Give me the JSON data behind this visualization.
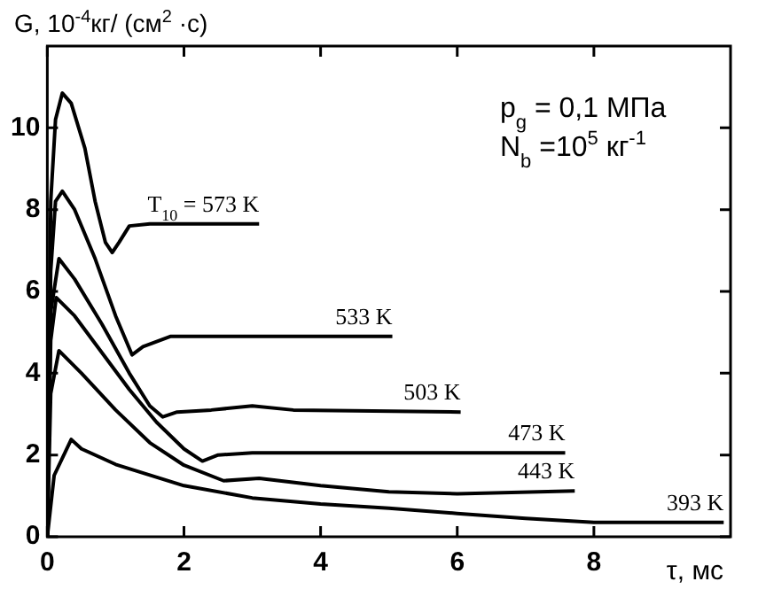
{
  "chart_data": {
    "type": "line",
    "ylabel": "G, 10$^{-4}$кг/ (см$^{2}$ ·с)",
    "xlabel": "τ, мс",
    "annotations": [
      "p$_{g}$ = 0,1 МПа",
      "N$_{b}$ =10$^{5}$ кг$^{-1}$"
    ],
    "xlim": [
      0,
      10
    ],
    "xticks": [
      0,
      2,
      4,
      6,
      8
    ],
    "ylim": [
      0,
      12
    ],
    "yticks": [
      0,
      2,
      4,
      6,
      8,
      10
    ],
    "grid": false,
    "legend": false,
    "marker": "none",
    "line_style": "solid",
    "series": [
      {
        "name": "T$_{10}$ = 573 K",
        "color": "#000000",
        "x": [
          0,
          0.05,
          0.12,
          0.22,
          0.35,
          0.55,
          0.7,
          0.85,
          0.95,
          1.05,
          1.2,
          1.5,
          3.1
        ],
        "values": [
          0,
          8.2,
          10.2,
          10.85,
          10.6,
          9.5,
          8.2,
          7.2,
          6.95,
          7.2,
          7.6,
          7.65,
          7.65
        ]
      },
      {
        "name": "533 K",
        "color": "#000000",
        "x": [
          0,
          0.05,
          0.12,
          0.22,
          0.4,
          0.7,
          1.0,
          1.24,
          1.4,
          1.8,
          5.05
        ],
        "values": [
          0,
          6.5,
          8.2,
          8.45,
          8.0,
          6.8,
          5.4,
          4.45,
          4.65,
          4.9,
          4.9
        ]
      },
      {
        "name": "503 K",
        "color": "#000000",
        "x": [
          0,
          0.05,
          0.17,
          0.4,
          0.8,
          1.2,
          1.5,
          1.69,
          1.9,
          2.4,
          3.0,
          3.6,
          6.05
        ],
        "values": [
          0,
          5.5,
          6.8,
          6.3,
          5.2,
          4.0,
          3.2,
          2.93,
          3.05,
          3.1,
          3.2,
          3.1,
          3.05
        ]
      },
      {
        "name": "473 K",
        "color": "#000000",
        "x": [
          0,
          0.05,
          0.13,
          0.4,
          0.8,
          1.2,
          1.6,
          2.0,
          2.27,
          2.5,
          3,
          7.58
        ],
        "values": [
          0,
          4.8,
          5.85,
          5.4,
          4.5,
          3.6,
          2.8,
          2.15,
          1.85,
          2.0,
          2.05,
          2.05
        ]
      },
      {
        "name": "443 K",
        "color": "#000000",
        "x": [
          0,
          0.05,
          0.17,
          0.5,
          1.0,
          1.5,
          2.0,
          2.58,
          3.1,
          4,
          5,
          6,
          7.72
        ],
        "values": [
          0,
          3.5,
          4.55,
          4.0,
          3.1,
          2.3,
          1.75,
          1.37,
          1.43,
          1.25,
          1.1,
          1.05,
          1.12
        ]
      },
      {
        "name": "393 K",
        "color": "#000000",
        "x": [
          0,
          0.1,
          0.35,
          0.5,
          1,
          2,
          3,
          4,
          5,
          6,
          7,
          8,
          9.9
        ],
        "values": [
          0,
          1.5,
          2.38,
          2.15,
          1.77,
          1.25,
          0.95,
          0.8,
          0.7,
          0.57,
          0.45,
          0.35,
          0.35
        ]
      }
    ]
  }
}
